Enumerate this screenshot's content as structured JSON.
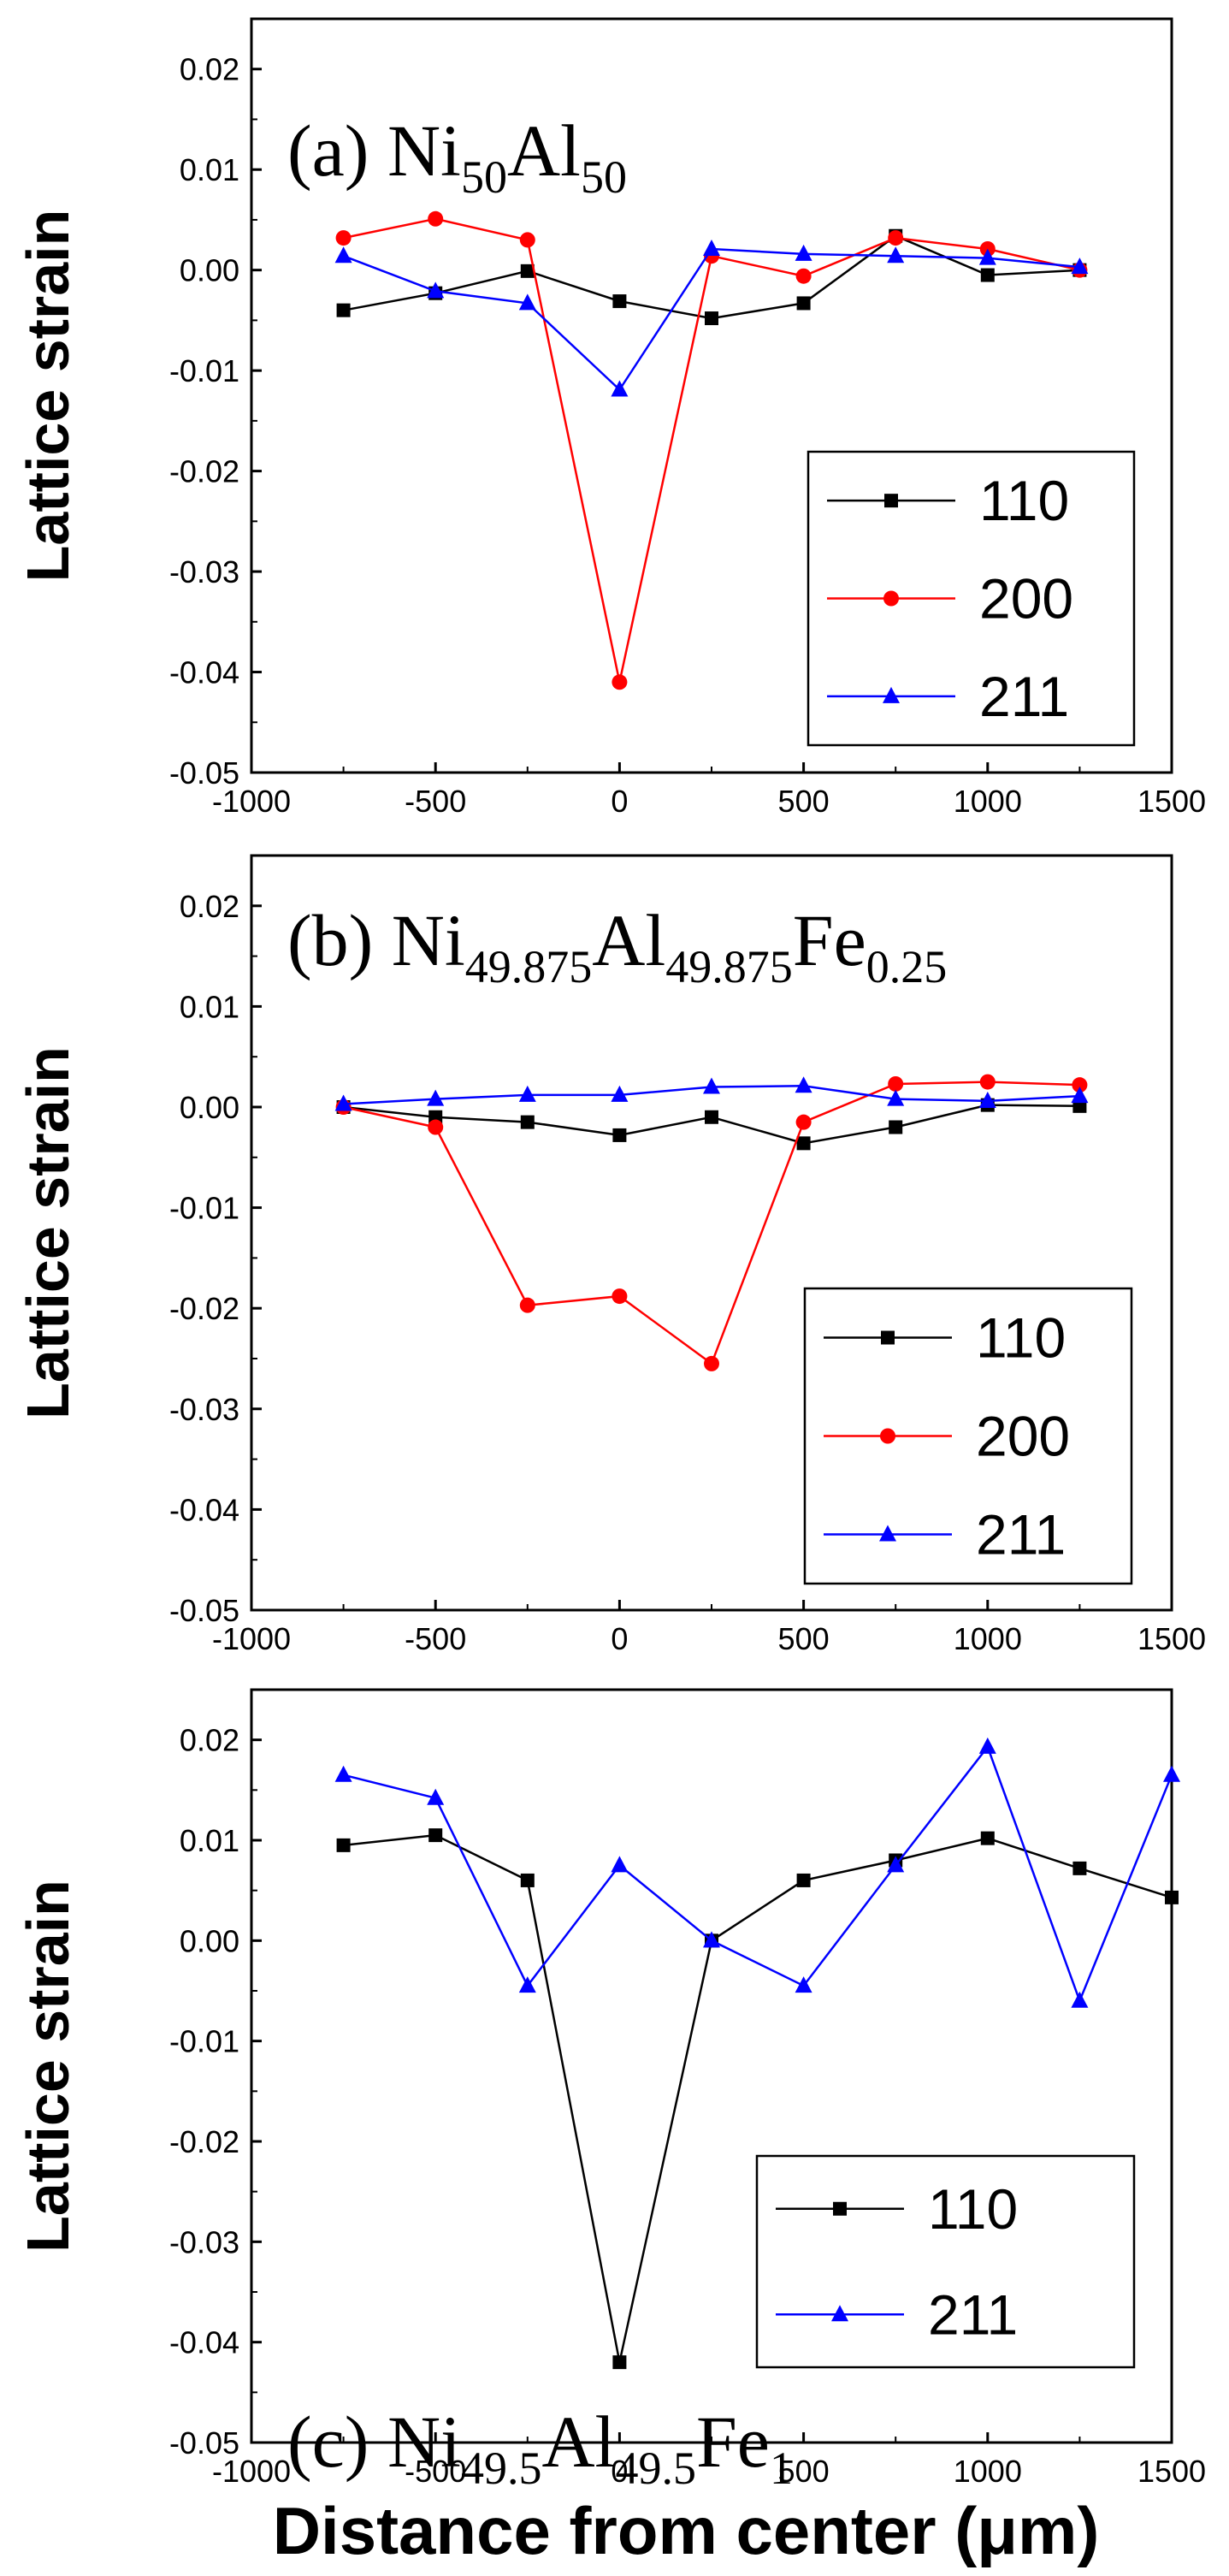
{
  "chart_data": [
    {
      "type": "line",
      "panel": "a",
      "label_parts": [
        {
          "text": "(a) Ni",
          "sub": false
        },
        {
          "text": "50",
          "sub": true
        },
        {
          "text": "Al",
          "sub": false
        },
        {
          "text": "50",
          "sub": true
        }
      ],
      "ylabel": "Lattice strain",
      "xlabel": "",
      "xlim": [
        -1000,
        1500
      ],
      "ylim": [
        -0.05,
        0.025
      ],
      "xticks": [
        -1000,
        -500,
        0,
        500,
        1000,
        1500
      ],
      "yticks": [
        -0.05,
        -0.04,
        -0.03,
        -0.02,
        -0.01,
        0.0,
        0.01,
        0.02
      ],
      "ytick_labels": [
        "-0.05",
        "-0.04",
        "-0.03",
        "-0.02",
        "-0.01",
        "0.00",
        "0.01",
        "0.02"
      ],
      "series": [
        {
          "name": "110",
          "color": "#000000",
          "marker": "square",
          "x": [
            -750,
            -500,
            -250,
            0,
            250,
            500,
            750,
            1000,
            1250
          ],
          "y": [
            -0.004,
            -0.0023,
            -0.0001,
            -0.0031,
            -0.0048,
            -0.0033,
            0.0034,
            -0.0005,
            0.0
          ]
        },
        {
          "name": "200",
          "color": "#ff0000",
          "marker": "circle",
          "x": [
            -750,
            -500,
            -250,
            0,
            250,
            500,
            750,
            1000,
            1250
          ],
          "y": [
            0.0032,
            0.0051,
            0.003,
            -0.041,
            0.0014,
            -0.0006,
            0.0032,
            0.0021,
            0.0
          ]
        },
        {
          "name": "211",
          "color": "#0000ff",
          "marker": "triangle",
          "x": [
            -750,
            -500,
            -250,
            0,
            250,
            500,
            750,
            1000,
            1250
          ],
          "y": [
            0.0014,
            -0.0021,
            -0.0033,
            -0.0119,
            0.0021,
            0.0016,
            0.0014,
            0.0012,
            0.0003
          ]
        }
      ],
      "legend": {
        "placement": "bottom-right",
        "labels": [
          "110",
          "200",
          "211"
        ]
      }
    },
    {
      "type": "line",
      "panel": "b",
      "label_parts": [
        {
          "text": "(b) Ni",
          "sub": false
        },
        {
          "text": "49.875",
          "sub": true
        },
        {
          "text": "Al",
          "sub": false
        },
        {
          "text": "49.875",
          "sub": true
        },
        {
          "text": "Fe",
          "sub": false
        },
        {
          "text": "0.25",
          "sub": true
        }
      ],
      "ylabel": "Lattice strain",
      "xlabel": "",
      "xlim": [
        -1000,
        1500
      ],
      "ylim": [
        -0.05,
        0.025
      ],
      "xticks": [
        -1000,
        -500,
        0,
        500,
        1000,
        1500
      ],
      "yticks": [
        -0.05,
        -0.04,
        -0.03,
        -0.02,
        -0.01,
        0.0,
        0.01,
        0.02
      ],
      "ytick_labels": [
        "-0.05",
        "-0.04",
        "-0.03",
        "-0.02",
        "-0.01",
        "0.00",
        "0.01",
        "0.02"
      ],
      "series": [
        {
          "name": "110",
          "color": "#000000",
          "marker": "square",
          "x": [
            -750,
            -500,
            -250,
            0,
            250,
            500,
            750,
            1000,
            1250
          ],
          "y": [
            0.0,
            -0.001,
            -0.0015,
            -0.0028,
            -0.001,
            -0.0036,
            -0.002,
            0.0002,
            0.0001
          ]
        },
        {
          "name": "200",
          "color": "#ff0000",
          "marker": "circle",
          "x": [
            -750,
            -500,
            -250,
            0,
            250,
            500,
            750,
            1000,
            1250
          ],
          "y": [
            0.0,
            -0.002,
            -0.0197,
            -0.0188,
            -0.0255,
            -0.0015,
            0.0023,
            0.0025,
            0.0022
          ]
        },
        {
          "name": "211",
          "color": "#0000ff",
          "marker": "triangle",
          "x": [
            -750,
            -500,
            -250,
            0,
            250,
            500,
            750,
            1000,
            1250
          ],
          "y": [
            0.0003,
            0.0008,
            0.0012,
            0.0012,
            0.002,
            0.0021,
            0.0008,
            0.0006,
            0.0011
          ]
        }
      ],
      "legend": {
        "placement": "bottom-right",
        "labels": [
          "110",
          "200",
          "211"
        ]
      }
    },
    {
      "type": "line",
      "panel": "c",
      "label_parts": [
        {
          "text": "(c) Ni",
          "sub": false
        },
        {
          "text": "49.5",
          "sub": true
        },
        {
          "text": "Al",
          "sub": false
        },
        {
          "text": "49.5",
          "sub": true
        },
        {
          "text": "Fe",
          "sub": false
        },
        {
          "text": "1",
          "sub": true
        }
      ],
      "ylabel": "Lattice strain",
      "xlabel": "Distance from center (μm)",
      "xlim": [
        -1000,
        1500
      ],
      "ylim": [
        -0.05,
        0.025
      ],
      "xticks": [
        -1000,
        -500,
        0,
        500,
        1000,
        1500
      ],
      "yticks": [
        -0.05,
        -0.04,
        -0.03,
        -0.02,
        -0.01,
        0.0,
        0.01,
        0.02
      ],
      "ytick_labels": [
        "-0.05",
        "-0.04",
        "-0.03",
        "-0.02",
        "-0.01",
        "0.00",
        "0.01",
        "0.02"
      ],
      "series": [
        {
          "name": "110",
          "color": "#000000",
          "marker": "square",
          "x": [
            -750,
            -500,
            -250,
            0,
            250,
            500,
            750,
            1000,
            1250,
            1500
          ],
          "y": [
            0.0095,
            0.0105,
            0.006,
            -0.042,
            0.0,
            0.006,
            0.008,
            0.0102,
            0.0072,
            0.0043
          ]
        },
        {
          "name": "211",
          "color": "#0000ff",
          "marker": "triangle",
          "x": [
            -750,
            -500,
            -250,
            0,
            250,
            500,
            750,
            1000,
            1250,
            1500
          ],
          "y": [
            0.0165,
            0.0142,
            -0.0045,
            0.0075,
            0.0,
            -0.0045,
            0.0075,
            0.0193,
            -0.006,
            0.0165
          ]
        }
      ],
      "legend": {
        "placement": "bottom-right",
        "labels": [
          "110",
          "211"
        ]
      }
    }
  ]
}
